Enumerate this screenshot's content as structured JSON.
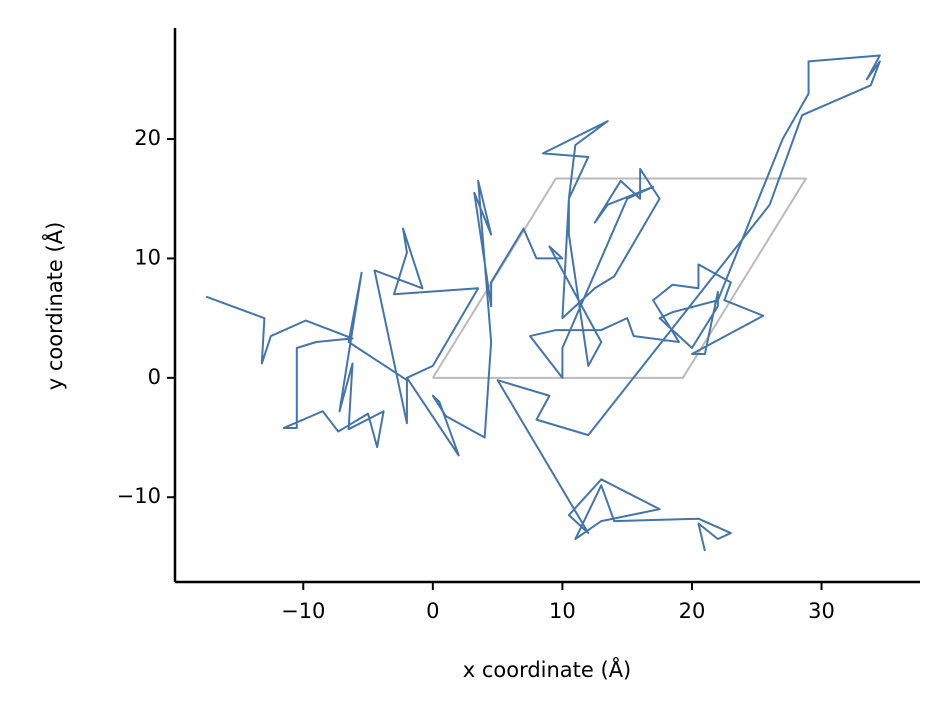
{
  "chart_data": {
    "type": "line",
    "xlabel": "x coordinate (Å)",
    "ylabel": "y coordinate (Å)",
    "xlim": [
      -19.9,
      37.6
    ],
    "ylim": [
      -17.1,
      29.3
    ],
    "xticks": [
      {
        "value": -10,
        "label": "−10"
      },
      0,
      10,
      20,
      30
    ],
    "yticks": [
      {
        "value": -10,
        "label": "−10"
      },
      0,
      10,
      20
    ],
    "grid": false,
    "series": [
      {
        "color": "#4575a8",
        "x": [
          -17.5,
          -13,
          -13.2,
          -12.5,
          -9.8,
          -6.2,
          -9,
          -10.5,
          -10.5,
          -11.5,
          -8.5,
          -7.3,
          -5,
          -4.3,
          -3.8,
          -6.5,
          -6.2,
          -7.2,
          -5.5,
          -6.5,
          -2,
          -2,
          -4.5,
          -0.8,
          -2.3,
          -2,
          -3,
          3.5,
          0,
          -2,
          2,
          0.5,
          0,
          1,
          4,
          4.5,
          3.5,
          4.5,
          3.2,
          4.5,
          4.5,
          7,
          8,
          10,
          9,
          13,
          12,
          10.5,
          10.5,
          12,
          8.5,
          13.5,
          11,
          10.5,
          10,
          12.5,
          14,
          17.5,
          16,
          16,
          14.5,
          12.5,
          13.5,
          17,
          15,
          10,
          10,
          7.5,
          9.5,
          12,
          13,
          15,
          15.5,
          19,
          17,
          18.5,
          20.5,
          20.5,
          23,
          22.5,
          25.5,
          20,
          21,
          22,
          22,
          20,
          17.5,
          18.5,
          22,
          27,
          29,
          29,
          34.5,
          33.5,
          34.5,
          33.8,
          28.5,
          26,
          12,
          8,
          9,
          5,
          12,
          10.5,
          13,
          17.5,
          13,
          11,
          13,
          14,
          20.5,
          23,
          22,
          20.5,
          21
        ],
        "values": [
          6.8,
          5,
          1.2,
          3.5,
          4.8,
          3.3,
          3,
          2.5,
          -4.2,
          -4.2,
          -2.8,
          -4.5,
          -3,
          -5.8,
          -2.8,
          -4.3,
          1.2,
          -2.8,
          8.8,
          3,
          -0.2,
          -3.8,
          9,
          7.5,
          12.5,
          10.5,
          7,
          7.5,
          1,
          0,
          -6.5,
          -2,
          -1.5,
          -3.2,
          -5,
          3,
          16.5,
          12,
          15.5,
          6,
          8,
          12.5,
          10,
          10,
          11,
          3,
          1,
          12,
          15,
          18.5,
          18.8,
          21.5,
          19.5,
          15,
          5,
          7.5,
          8.5,
          15,
          17.5,
          15,
          16.5,
          13,
          14.5,
          16,
          15,
          2.5,
          0,
          3.5,
          4,
          4,
          4,
          5,
          3.5,
          3,
          6.5,
          7.8,
          7.5,
          9.5,
          8,
          6.5,
          5.2,
          2,
          2,
          7.2,
          6,
          2.5,
          5,
          5.5,
          6.5,
          20,
          23.8,
          26.5,
          27,
          25,
          26.5,
          24.5,
          22,
          14.5,
          -4.8,
          -3.5,
          -1.5,
          -0.2,
          -13,
          -11.5,
          -8.5,
          -11,
          -12,
          -13.5,
          -9,
          -12,
          -11.8,
          -13,
          -13.5,
          -12.2,
          -14.5
        ]
      },
      {
        "color": "#bbbbbb",
        "x": [
          0,
          19.3,
          28.8,
          9.5,
          0
        ],
        "values": [
          0,
          0,
          16.7,
          16.7,
          0
        ]
      }
    ]
  }
}
